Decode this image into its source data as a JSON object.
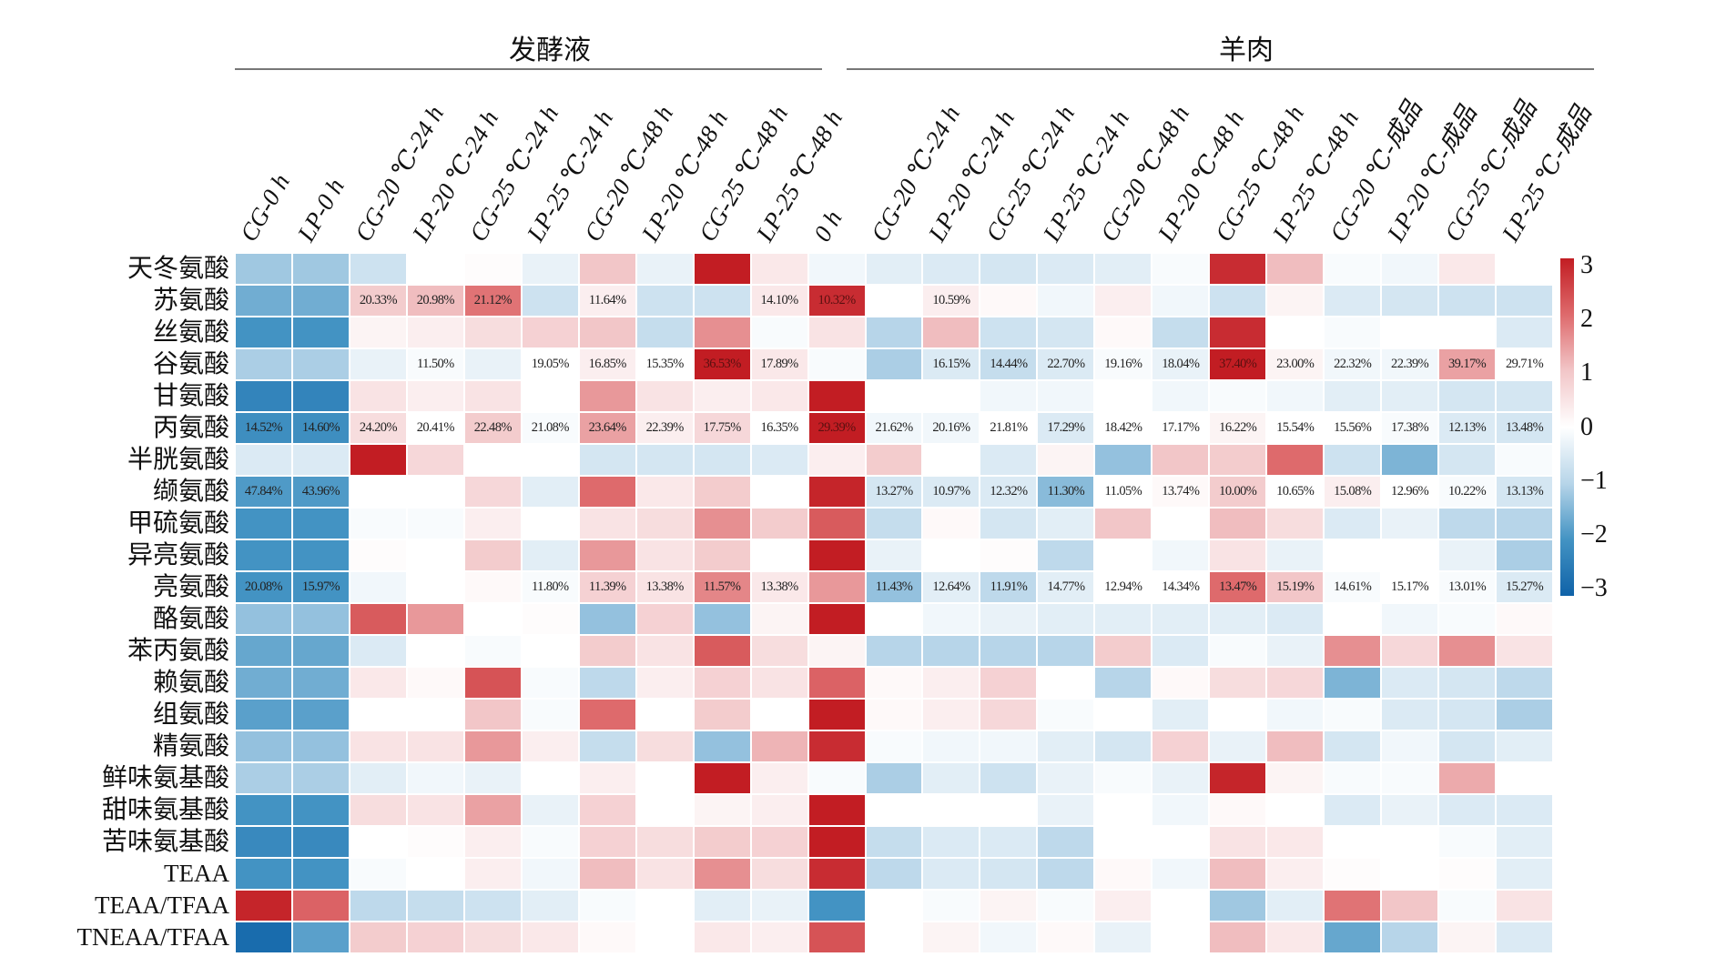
{
  "chart_data": {
    "type": "heatmap",
    "groups": [
      {
        "label": "发酵液",
        "span": [
          0,
          9
        ]
      },
      {
        "label": "羊肉",
        "span": [
          10,
          22
        ]
      }
    ],
    "columns": [
      "CG-0 h",
      "LP-0 h",
      "CG-20 ℃-24 h",
      "LP-20 ℃-24 h",
      "CG-25 ℃-24 h",
      "LP-25 ℃-24 h",
      "CG-20 ℃-48 h",
      "LP-20 ℃-48 h",
      "CG-25 ℃-48 h",
      "LP-25 ℃-48 h",
      "0 h",
      "CG-20 ℃-24 h",
      "LP-20 ℃-24 h",
      "CG-25 ℃-24 h",
      "LP-25 ℃-24 h",
      "CG-20 ℃-48 h",
      "LP-20 ℃-48 h",
      "CG-25 ℃-48 h",
      "LP-25 ℃-48 h",
      "CG-20 ℃-成品",
      "LP-20 ℃-成品",
      "CG-25 ℃-成品",
      "LP-25 ℃-成品"
    ],
    "rows": [
      "天冬氨酸",
      "苏氨酸",
      "丝氨酸",
      "谷氨酸",
      "甘氨酸",
      "丙氨酸",
      "半胱氨酸",
      "缬氨酸",
      "甲硫氨酸",
      "异亮氨酸",
      "亮氨酸",
      "酪氨酸",
      "苯丙氨酸",
      "赖氨酸",
      "组氨酸",
      "精氨酸",
      "鲜味氨基酸",
      "甜味氨基酸",
      "苦味氨基酸",
      "TEAA",
      "TEAA/TFAA",
      "TNEAA/TFAA"
    ],
    "values": [
      [
        -1.2,
        -1.2,
        -0.7,
        0,
        0.05,
        -0.3,
        1,
        -0.3,
        3,
        0.4,
        -0.2,
        -0.4,
        -0.5,
        -0.6,
        -0.5,
        -0.4,
        -0.1,
        2.8,
        1.1,
        -0.1,
        -0.2,
        0.4,
        0
      ],
      [
        -1.6,
        -1.6,
        0.9,
        1.1,
        1.9,
        -0.7,
        0.3,
        -0.7,
        -0.7,
        0.4,
        2.8,
        0,
        0.3,
        0.1,
        -0.2,
        0.3,
        -0.2,
        -0.7,
        0.2,
        -0.5,
        -0.6,
        -0.7,
        -0.7
      ],
      [
        -2,
        -2,
        0.2,
        0.3,
        0.6,
        0.8,
        1,
        -0.8,
        1.6,
        -0.1,
        0.5,
        -1,
        1.1,
        -0.7,
        -0.6,
        0.1,
        -0.8,
        2.8,
        0,
        -0.1,
        0,
        0,
        -0.5
      ],
      [
        -1.1,
        -1.1,
        -0.3,
        -0.1,
        -0.3,
        0,
        0.3,
        0,
        3,
        0.4,
        -0.1,
        -1.1,
        -0.5,
        -0.8,
        -0.5,
        -0.1,
        -0.3,
        3,
        0.2,
        -0.2,
        -0.2,
        1.4,
        0
      ],
      [
        -2.3,
        -2.3,
        0.5,
        0.3,
        0.5,
        0,
        1.5,
        0.5,
        0.3,
        0.4,
        3,
        0,
        0,
        -0.2,
        -0.2,
        0,
        -0.2,
        -0.1,
        -0.2,
        -0.4,
        -0.4,
        -0.6,
        -0.6
      ],
      [
        -2.1,
        -2.1,
        0.6,
        0,
        0.9,
        -0.1,
        1.4,
        0.3,
        0.7,
        0,
        3,
        -0.2,
        -0.2,
        0,
        -0.5,
        0,
        0,
        0.2,
        0,
        0,
        -0.1,
        -0.5,
        -0.6
      ],
      [
        -0.5,
        -0.5,
        3,
        0.7,
        0,
        0,
        -0.6,
        -0.6,
        -0.6,
        -0.5,
        0.3,
        0.9,
        0,
        -0.5,
        0.2,
        -1.3,
        1,
        0.9,
        2,
        -0.7,
        -1.5,
        -0.6,
        -0.1
      ],
      [
        -1.9,
        -1.9,
        0,
        0,
        0.7,
        -0.4,
        2,
        0.4,
        0.9,
        0,
        2.9,
        -0.6,
        -0.5,
        -0.5,
        -1.4,
        0,
        0.1,
        0.9,
        0,
        0.3,
        0,
        -0.1,
        -0.6
      ],
      [
        -2,
        -2,
        -0.1,
        -0.1,
        0.3,
        0,
        0.5,
        0.6,
        1.6,
        0.9,
        2.2,
        -0.8,
        0.1,
        -0.6,
        -0.4,
        1,
        0,
        1.1,
        0.6,
        -0.5,
        -0.3,
        -0.9,
        -1
      ],
      [
        -2,
        -2,
        0.05,
        0,
        0.9,
        -0.4,
        1.5,
        0.5,
        0.9,
        0,
        3,
        -0.3,
        0,
        0.05,
        -0.9,
        0,
        -0.2,
        0.5,
        -0.3,
        0,
        0,
        -0.3,
        -1.1
      ],
      [
        -2,
        -2,
        -0.2,
        0,
        0.1,
        -0.1,
        0.8,
        0.5,
        1.7,
        0.4,
        1.5,
        -1.3,
        -0.4,
        -0.9,
        -0.4,
        0,
        0,
        2,
        1,
        -0.1,
        0,
        -0.1,
        -0.5
      ],
      [
        -1.3,
        -1.3,
        2.2,
        1.5,
        0,
        0.05,
        -1.3,
        0.8,
        -1.3,
        0.2,
        3,
        0,
        -0.2,
        -0.3,
        -0.4,
        -0.4,
        -0.4,
        -0.4,
        -0.5,
        0,
        -0.2,
        -0.1,
        0.1
      ],
      [
        -1.7,
        -1.7,
        -0.5,
        0,
        -0.1,
        0,
        0.9,
        0.5,
        2.2,
        0.6,
        0.2,
        -1,
        -1,
        -1,
        -1,
        0.9,
        -0.5,
        -0.1,
        -0.3,
        1.6,
        0.7,
        1.6,
        0.5
      ],
      [
        -1.6,
        -1.6,
        0.4,
        0.1,
        2.3,
        -0.1,
        -0.9,
        0.3,
        0.8,
        0.5,
        2.1,
        0.1,
        0.3,
        0.8,
        0,
        -1,
        0.1,
        0.6,
        0.7,
        -1.5,
        -0.5,
        -0.6,
        -0.9
      ],
      [
        -1.8,
        -1.8,
        0,
        0,
        1,
        -0.1,
        2,
        0,
        0.9,
        0,
        3,
        0.1,
        0.3,
        0.7,
        -0.1,
        0,
        -0.4,
        0,
        -0.2,
        -0.1,
        -0.5,
        -0.6,
        -1.1
      ],
      [
        -1.3,
        -1.3,
        0.5,
        0.5,
        1.5,
        0.3,
        -0.8,
        0.6,
        -1.3,
        1.2,
        2.8,
        -0.1,
        -0.2,
        -0.2,
        -0.4,
        -0.6,
        0.8,
        -0.3,
        1.1,
        -0.6,
        -0.2,
        -0.6,
        -0.4
      ],
      [
        -1.1,
        -1.1,
        -0.4,
        -0.2,
        -0.3,
        0,
        0.3,
        0,
        3,
        0.3,
        -0.1,
        -1.1,
        -0.4,
        -0.7,
        -0.3,
        -0.1,
        -0.3,
        2.9,
        0.2,
        -0.1,
        -0.1,
        1.3,
        0
      ],
      [
        -2,
        -2,
        0.6,
        0.5,
        1.4,
        -0.3,
        0.8,
        0,
        0.2,
        0.3,
        3,
        0,
        0,
        0,
        -0.3,
        0,
        -0.2,
        0.1,
        0,
        -0.5,
        -0.3,
        -0.5,
        -0.5
      ],
      [
        -2.2,
        -2.2,
        0,
        0.05,
        0.3,
        -0.1,
        0.8,
        0.6,
        0.9,
        0.8,
        3,
        -0.8,
        -0.5,
        -0.5,
        -0.9,
        0,
        0,
        0.5,
        0.4,
        0,
        0,
        -0.1,
        -0.4
      ],
      [
        -2,
        -2,
        -0.1,
        0,
        0.3,
        -0.2,
        1.1,
        0.5,
        1.6,
        0.6,
        2.8,
        -0.9,
        -0.5,
        -0.6,
        -0.9,
        0.1,
        -0.2,
        1.1,
        0.3,
        0.05,
        0,
        0.05,
        -0.4
      ],
      [
        2.9,
        2.1,
        -0.9,
        -0.8,
        -0.7,
        -0.4,
        -0.1,
        0,
        -0.4,
        -0.3,
        -2,
        0,
        -0.1,
        0.2,
        -0.1,
        0.3,
        0,
        -1.2,
        -0.4,
        1.9,
        1,
        -0.1,
        0.5
      ],
      [
        -2.8,
        -1.8,
        0.9,
        0.8,
        0.6,
        0.4,
        0.1,
        0,
        0.4,
        0.3,
        2.3,
        0,
        0.2,
        -0.2,
        0.1,
        -0.3,
        0,
        1.1,
        0.4,
        -1.7,
        -1,
        0.2,
        -0.5
      ]
    ],
    "cell_labels": {
      "1": [
        "",
        "",
        "20.33%",
        "20.98%",
        "21.12%",
        "",
        "11.64%",
        "",
        "",
        "14.10%",
        "10.32%",
        "",
        "10.59%",
        "",
        "",
        "",
        "",
        "",
        "",
        "",
        "",
        "",
        ""
      ],
      "3": [
        "",
        "",
        "",
        "11.50%",
        "",
        "19.05%",
        "16.85%",
        "15.35%",
        "36.53%",
        "17.89%",
        "",
        "",
        "16.15%",
        "14.44%",
        "22.70%",
        "19.16%",
        "18.04%",
        "37.40%",
        "23.00%",
        "22.32%",
        "22.39%",
        "39.17%",
        "29.71%"
      ],
      "5": [
        "14.52%",
        "14.60%",
        "24.20%",
        "20.41%",
        "22.48%",
        "21.08%",
        "23.64%",
        "22.39%",
        "17.75%",
        "16.35%",
        "29.39%",
        "21.62%",
        "20.16%",
        "21.81%",
        "17.29%",
        "18.42%",
        "17.17%",
        "16.22%",
        "15.54%",
        "15.56%",
        "17.38%",
        "12.13%",
        "13.48%"
      ],
      "7": [
        "47.84%",
        "43.96%",
        "",
        "",
        "",
        "",
        "",
        "",
        "",
        "",
        "",
        "13.27%",
        "10.97%",
        "12.32%",
        "11.30%",
        "11.05%",
        "13.74%",
        "10.00%",
        "10.65%",
        "15.08%",
        "12.96%",
        "10.22%",
        "13.13%"
      ],
      "10": [
        "20.08%",
        "15.97%",
        "",
        "",
        "",
        "11.80%",
        "11.39%",
        "13.38%",
        "11.57%",
        "13.38%",
        "",
        "11.43%",
        "12.64%",
        "11.91%",
        "14.77%",
        "12.94%",
        "14.34%",
        "13.47%",
        "15.19%",
        "14.61%",
        "15.17%",
        "13.01%",
        "15.27%"
      ]
    },
    "colorbar": {
      "range": [
        -3,
        3
      ],
      "ticks": [
        "3",
        "2",
        "1",
        "0",
        "−1",
        "−2",
        "−3"
      ],
      "colors": [
        "#0f62a8",
        "#4393c3",
        "#b7d5e9",
        "#ffffff",
        "#f2c6c8",
        "#de6a6c",
        "#c21d23"
      ]
    }
  }
}
